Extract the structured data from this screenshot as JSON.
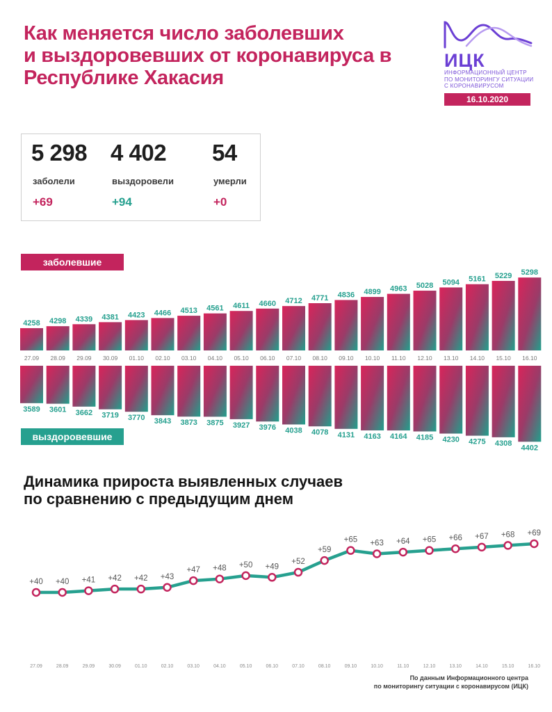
{
  "header": {
    "title_lines": [
      "Как меняется число заболевших",
      "и выздоровевших от коронавируса в",
      "Республике Хакасия"
    ]
  },
  "logo": {
    "abbr": "ИЦК",
    "sub_lines": [
      "ИНФОРМАЦИОННЫЙ ЦЕНТР",
      "ПО МОНИТОРИНГУ СИТУАЦИИ",
      "С КОРОНАВИРУСОМ"
    ],
    "date": "16.10.2020",
    "color": "#6b3fd4"
  },
  "stats": [
    {
      "value": "5 298",
      "label": "заболели",
      "change": "+69",
      "color": "#c3245d"
    },
    {
      "value": "4 402",
      "label": "выздоровели",
      "change": "+94",
      "color": "#26a08f"
    },
    {
      "value": "54",
      "label": "умерли",
      "change": "+0",
      "color": "#c3245d"
    }
  ],
  "labels": {
    "cases": "заболевшие",
    "recovered": "выздоровевшие"
  },
  "colors": {
    "accent": "#c3245d",
    "teal": "#26a08f",
    "purple": "#6b3fd4"
  },
  "chart_data": [
    {
      "type": "bar",
      "categories": [
        "27.09",
        "28.09",
        "29.09",
        "30.09",
        "01.10",
        "02.10",
        "03.10",
        "04.10",
        "05.10",
        "06.10",
        "07.10",
        "08.10",
        "09.10",
        "10.10",
        "11.10",
        "12.10",
        "13.10",
        "14.10",
        "15.10",
        "16.10"
      ],
      "series": [
        {
          "name": "заболевшие",
          "values": [
            4258,
            4298,
            4339,
            4381,
            4423,
            4466,
            4513,
            4561,
            4611,
            4660,
            4712,
            4771,
            4836,
            4899,
            4963,
            5028,
            5094,
            5161,
            5229,
            5298
          ]
        },
        {
          "name": "выздоровевшие",
          "values": [
            3589,
            3601,
            3662,
            3719,
            3770,
            3843,
            3873,
            3875,
            3927,
            3976,
            4038,
            4078,
            4131,
            4163,
            4164,
            4185,
            4230,
            4275,
            4308,
            4402
          ]
        }
      ]
    },
    {
      "type": "line",
      "title_lines": [
        "Динамика прироста выявленных случаев",
        "по сравнению с предыдущим днем"
      ],
      "categories": [
        "27.09",
        "28.09",
        "29.09",
        "30.09",
        "01.10",
        "02.10",
        "03.10",
        "04.10",
        "05.10",
        "06.10",
        "07.10",
        "08.10",
        "09.10",
        "10.10",
        "11.10",
        "12.10",
        "13.10",
        "14.10",
        "15.10",
        "16.10"
      ],
      "values": [
        40,
        40,
        41,
        42,
        42,
        43,
        47,
        48,
        50,
        49,
        52,
        59,
        65,
        63,
        64,
        65,
        66,
        67,
        68,
        69
      ],
      "value_labels": [
        "+40",
        "+40",
        "+41",
        "+42",
        "+42",
        "+43",
        "+47",
        "+48",
        "+50",
        "+49",
        "+52",
        "+59",
        "+65",
        "+63",
        "+64",
        "+65",
        "+66",
        "+67",
        "+68",
        "+69"
      ],
      "grid": false
    }
  ],
  "footer": {
    "source_lines": [
      "По данным Информационного центра",
      "по мониторингу ситуации с коронавирусом (ИЦК)"
    ]
  }
}
